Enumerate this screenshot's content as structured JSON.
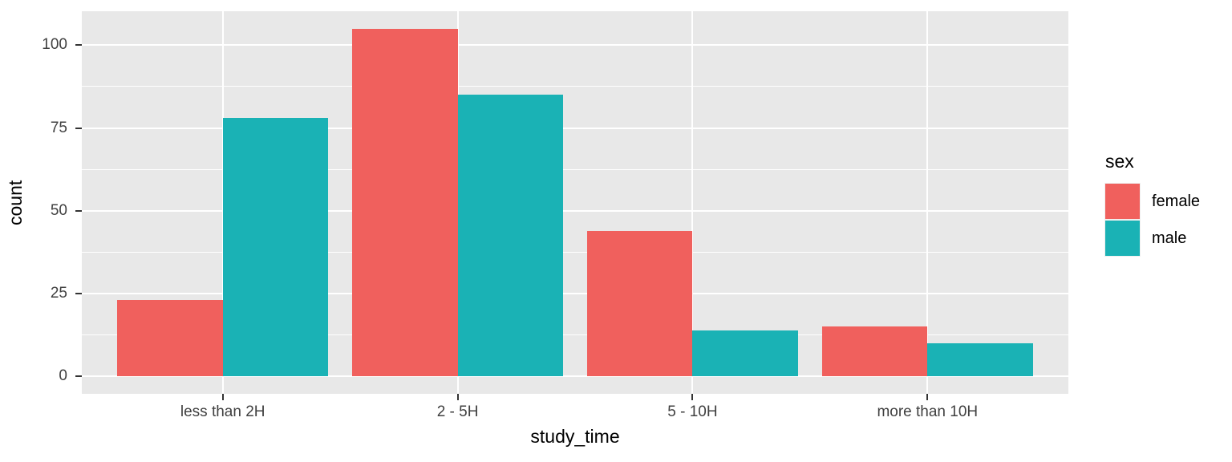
{
  "chart_data": {
    "type": "bar",
    "mode": "grouped",
    "title": "",
    "xlabel": "study_time",
    "ylabel": "count",
    "categories": [
      "less than 2H",
      "2 - 5H",
      "5 - 10H",
      "more than 10H"
    ],
    "series": [
      {
        "name": "female",
        "color": "#F0605D",
        "values": [
          23,
          105,
          44,
          15
        ]
      },
      {
        "name": "male",
        "color": "#1AB2B5",
        "values": [
          78,
          85,
          14,
          10
        ]
      }
    ],
    "legend": {
      "title": "sex",
      "position": "right",
      "entries": [
        "female",
        "male"
      ]
    },
    "y_ticks": [
      0,
      25,
      50,
      75,
      100
    ],
    "y_minor_ticks": [
      12.5,
      37.5,
      62.5,
      87.5
    ],
    "ylim": [
      -5.25,
      110.25
    ],
    "grid": true,
    "colors": {
      "panel_background": "#E8E8E8",
      "gridline": "#FFFFFF",
      "tick_mark": "#333333",
      "tick_text": "#404040",
      "title_text": "#000000"
    }
  }
}
